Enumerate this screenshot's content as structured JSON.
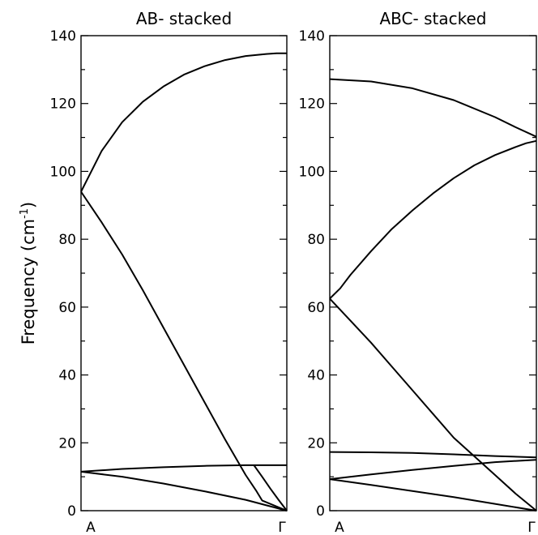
{
  "chart_data": [
    {
      "type": "line",
      "title": "AB- stacked",
      "xlabel": "",
      "ylabel": "Frequency (cm-1)",
      "ylabel_text": "Frequency (cm",
      "ylabel_sup": "-1",
      "ylabel_close": ")",
      "xlim": [
        0,
        1
      ],
      "ylim": [
        0,
        140
      ],
      "yticks": [
        0,
        20,
        40,
        60,
        80,
        100,
        120,
        140
      ],
      "xtick_labels": [
        "A",
        "Γ"
      ],
      "grid": false,
      "series": [
        {
          "x": [
            0,
            0.05,
            0.1,
            0.2,
            0.3,
            0.4,
            0.5,
            0.6,
            0.7,
            0.8,
            0.9,
            0.95,
            1.0
          ],
          "y": [
            94,
            100,
            106,
            114.5,
            120.5,
            125,
            128.5,
            131,
            132.8,
            134,
            134.6,
            134.8,
            134.8
          ]
        },
        {
          "x": [
            0,
            0.1,
            0.2,
            0.3,
            0.4,
            0.5,
            0.6,
            0.7,
            0.8,
            0.85,
            0.88,
            1.0
          ],
          "y": [
            94,
            85,
            75.5,
            65,
            54,
            43,
            32,
            21,
            10.5,
            6,
            3,
            0
          ]
        },
        {
          "x": [
            0,
            0.2,
            0.4,
            0.6,
            0.8,
            1.0
          ],
          "y": [
            11.5,
            12.3,
            12.8,
            13.2,
            13.4,
            13.4
          ]
        },
        {
          "x": [
            0,
            0.2,
            0.4,
            0.6,
            0.8,
            1.0
          ],
          "y": [
            11.5,
            10,
            8,
            5.7,
            3.2,
            0
          ]
        },
        {
          "x": [
            0.84,
            0.88,
            0.92,
            0.96,
            1.0
          ],
          "y": [
            13.4,
            10,
            6.5,
            3.2,
            0
          ]
        }
      ]
    },
    {
      "type": "line",
      "title": "ABC- stacked",
      "xlabel": "",
      "ylabel": "",
      "xlim": [
        0,
        1
      ],
      "ylim": [
        0,
        140
      ],
      "yticks": [
        0,
        20,
        40,
        60,
        80,
        100,
        120,
        140
      ],
      "xtick_labels": [
        "A",
        "Γ"
      ],
      "grid": false,
      "series": [
        {
          "x": [
            0,
            0.2,
            0.4,
            0.6,
            0.8,
            0.9,
            1.0
          ],
          "y": [
            127.2,
            126.5,
            124.5,
            121,
            116,
            113,
            110.2
          ]
        },
        {
          "x": [
            0,
            0.05,
            0.1,
            0.2,
            0.3,
            0.4,
            0.5,
            0.6,
            0.7,
            0.8,
            0.9,
            0.95,
            1.0
          ],
          "y": [
            62.5,
            65.5,
            69.5,
            76.5,
            83,
            88.5,
            93.5,
            98,
            101.8,
            104.8,
            107.2,
            108.3,
            109
          ]
        },
        {
          "x": [
            0,
            0.1,
            0.2,
            0.3,
            0.4,
            0.5,
            0.6,
            0.7,
            0.8,
            0.9,
            1.0
          ],
          "y": [
            62.5,
            56,
            49.5,
            42.5,
            35.5,
            28.5,
            21.5,
            16,
            10.5,
            5,
            0
          ]
        },
        {
          "x": [
            0,
            0.2,
            0.4,
            0.6,
            0.8,
            1.0
          ],
          "y": [
            17.3,
            17.2,
            17,
            16.6,
            16.1,
            15.7
          ]
        },
        {
          "x": [
            0,
            0.2,
            0.4,
            0.6,
            0.8,
            1.0
          ],
          "y": [
            9.3,
            10.7,
            12,
            13.2,
            14.3,
            15
          ]
        },
        {
          "x": [
            0,
            0.2,
            0.4,
            0.6,
            0.8,
            1.0
          ],
          "y": [
            9.3,
            7.6,
            5.8,
            4,
            2,
            0
          ]
        }
      ]
    }
  ]
}
